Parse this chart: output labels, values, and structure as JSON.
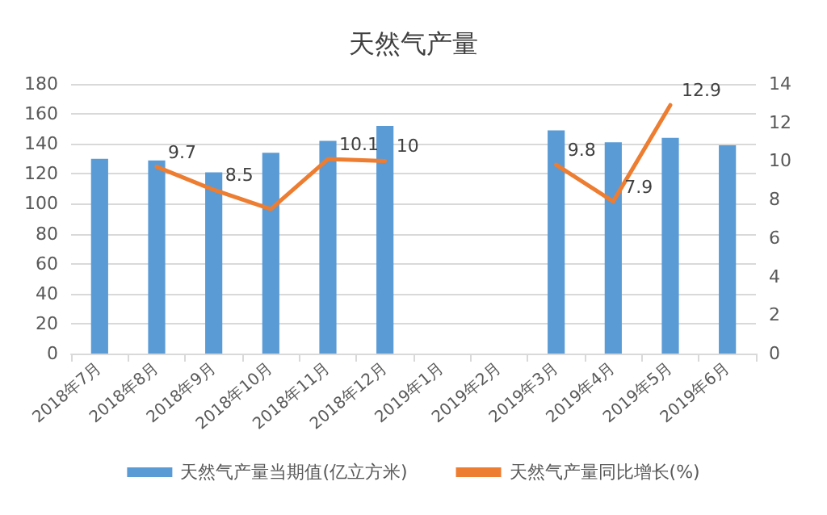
{
  "chart_data": {
    "type": "bar",
    "title": "天然气产量",
    "categories": [
      "2018年7月",
      "2018年8月",
      "2018年9月",
      "2018年10月",
      "2018年11月",
      "2018年12月",
      "2019年1月",
      "2019年2月",
      "2019年3月",
      "2019年4月",
      "2019年5月",
      "2019年6月"
    ],
    "series": [
      {
        "name": "天然气产量当期值(亿立方米)",
        "color": "#5b9bd5",
        "values": [
          130,
          129,
          121,
          134,
          142,
          152,
          null,
          null,
          149,
          141,
          144,
          139
        ]
      },
      {
        "name": "天然气产量同比增长(%)",
        "type": "line",
        "axis": "y2",
        "color": "#ed7d31",
        "values": [
          null,
          9.7,
          8.5,
          7.5,
          10.1,
          10,
          null,
          null,
          9.8,
          7.9,
          12.9,
          null
        ],
        "value_labels": [
          null,
          "9.7",
          "8.5",
          null,
          "10.1",
          "10",
          null,
          null,
          "9.8",
          "7.9",
          "12.9",
          null
        ]
      }
    ],
    "ylim": [
      0,
      180
    ],
    "yticks": [
      0,
      20,
      40,
      60,
      80,
      100,
      120,
      140,
      160,
      180
    ],
    "y2lim": [
      0,
      14
    ],
    "y2ticks": [
      0,
      2,
      4,
      6,
      8,
      10,
      12,
      14
    ],
    "grid": "y",
    "legend": "bottom",
    "marker": "none"
  }
}
